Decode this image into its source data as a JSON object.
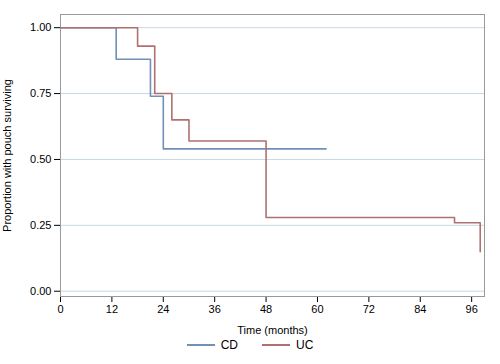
{
  "chart_data": {
    "type": "step",
    "xlabel": "Time (months)",
    "ylabel": "Proportion with pouch surviving",
    "series": [
      {
        "name": "CD",
        "color": "#7090b8",
        "x": [
          0,
          13,
          21,
          24,
          62
        ],
        "values": [
          1.0,
          0.88,
          0.74,
          0.54,
          0.54
        ]
      },
      {
        "name": "UC",
        "color": "#b07070",
        "x": [
          0,
          18,
          22,
          26,
          30,
          48,
          90,
          92,
          98
        ],
        "values": [
          1.0,
          0.93,
          0.75,
          0.65,
          0.57,
          0.28,
          0.28,
          0.26,
          0.15
        ]
      }
    ],
    "xlim": [
      0,
      99
    ],
    "ylim": [
      -0.02,
      1.05
    ],
    "xticks": [
      0,
      12,
      24,
      36,
      48,
      60,
      72,
      84,
      96
    ],
    "yticks": [
      {
        "value": 0.0,
        "label": "0.00"
      },
      0.25,
      {
        "value": 0.5,
        "label": "0.50"
      },
      0.75,
      {
        "value": 1.0,
        "label": "1.00"
      }
    ],
    "grid": "y",
    "legend": "bottom"
  }
}
